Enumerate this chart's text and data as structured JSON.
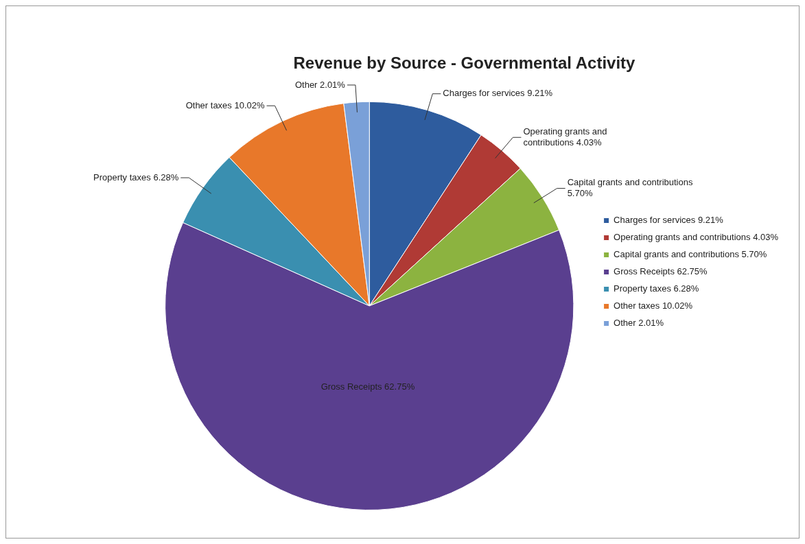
{
  "chart_data": {
    "type": "pie",
    "title": "Revenue by Source - Governmental Activity",
    "categories": [
      "Charges for services 9.21%",
      "Operating grants and contributions 4.03%",
      "Capital grants and contributions 5.70%",
      "Gross Receipts 62.75%",
      "Property taxes 6.28%",
      "Other taxes 10.02%",
      "Other 2.01%"
    ],
    "values": [
      9.21,
      4.03,
      5.7,
      62.75,
      6.28,
      10.02,
      2.01
    ],
    "colors": [
      "#2e5c9e",
      "#b03a35",
      "#8cb340",
      "#5a3f8f",
      "#3a8fb0",
      "#e8782a",
      "#7aa0d8"
    ],
    "legend": "right"
  }
}
